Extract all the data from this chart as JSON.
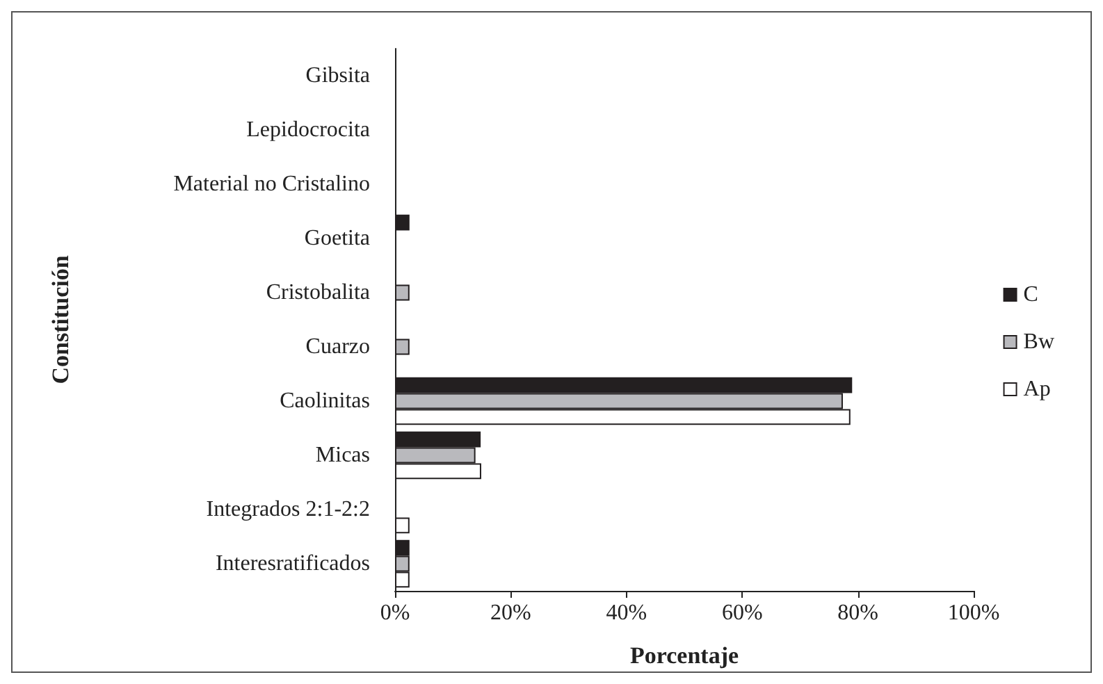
{
  "chart_data": {
    "type": "bar",
    "orientation": "horizontal",
    "xlabel": "Porcentaje",
    "ylabel": "Constitución",
    "categories": [
      "Gibsita",
      "Lepidocrocita",
      "Material no Cristalino",
      "Goetita",
      "Cristobalita",
      "Cuarzo",
      "Caolinitas",
      "Micas",
      "Integrados 2:1-2:2",
      "Interesratificados"
    ],
    "series": [
      {
        "name": "C",
        "color": "#231f20",
        "values": [
          0,
          0,
          0,
          2.5,
          0,
          0,
          79,
          14.8,
          0,
          2.5
        ]
      },
      {
        "name": "Bw",
        "color": "#b9b9bd",
        "values": [
          0,
          0,
          0,
          0,
          2.5,
          2.5,
          77.4,
          13.9,
          0,
          2.5
        ]
      },
      {
        "name": "Ap",
        "color": "#ffffff",
        "values": [
          0,
          0,
          0,
          0,
          0,
          0,
          78.7,
          14.9,
          2.5,
          2.5
        ]
      }
    ],
    "xlim": [
      0,
      100
    ],
    "xticks": [
      {
        "value": 0,
        "label": "0%"
      },
      {
        "value": 20,
        "label": "20%"
      },
      {
        "value": 40,
        "label": "40%"
      },
      {
        "value": 60,
        "label": "60%"
      },
      {
        "value": 80,
        "label": "80%"
      },
      {
        "value": 100,
        "label": "100%"
      }
    ],
    "grid": false,
    "legend": "right"
  }
}
